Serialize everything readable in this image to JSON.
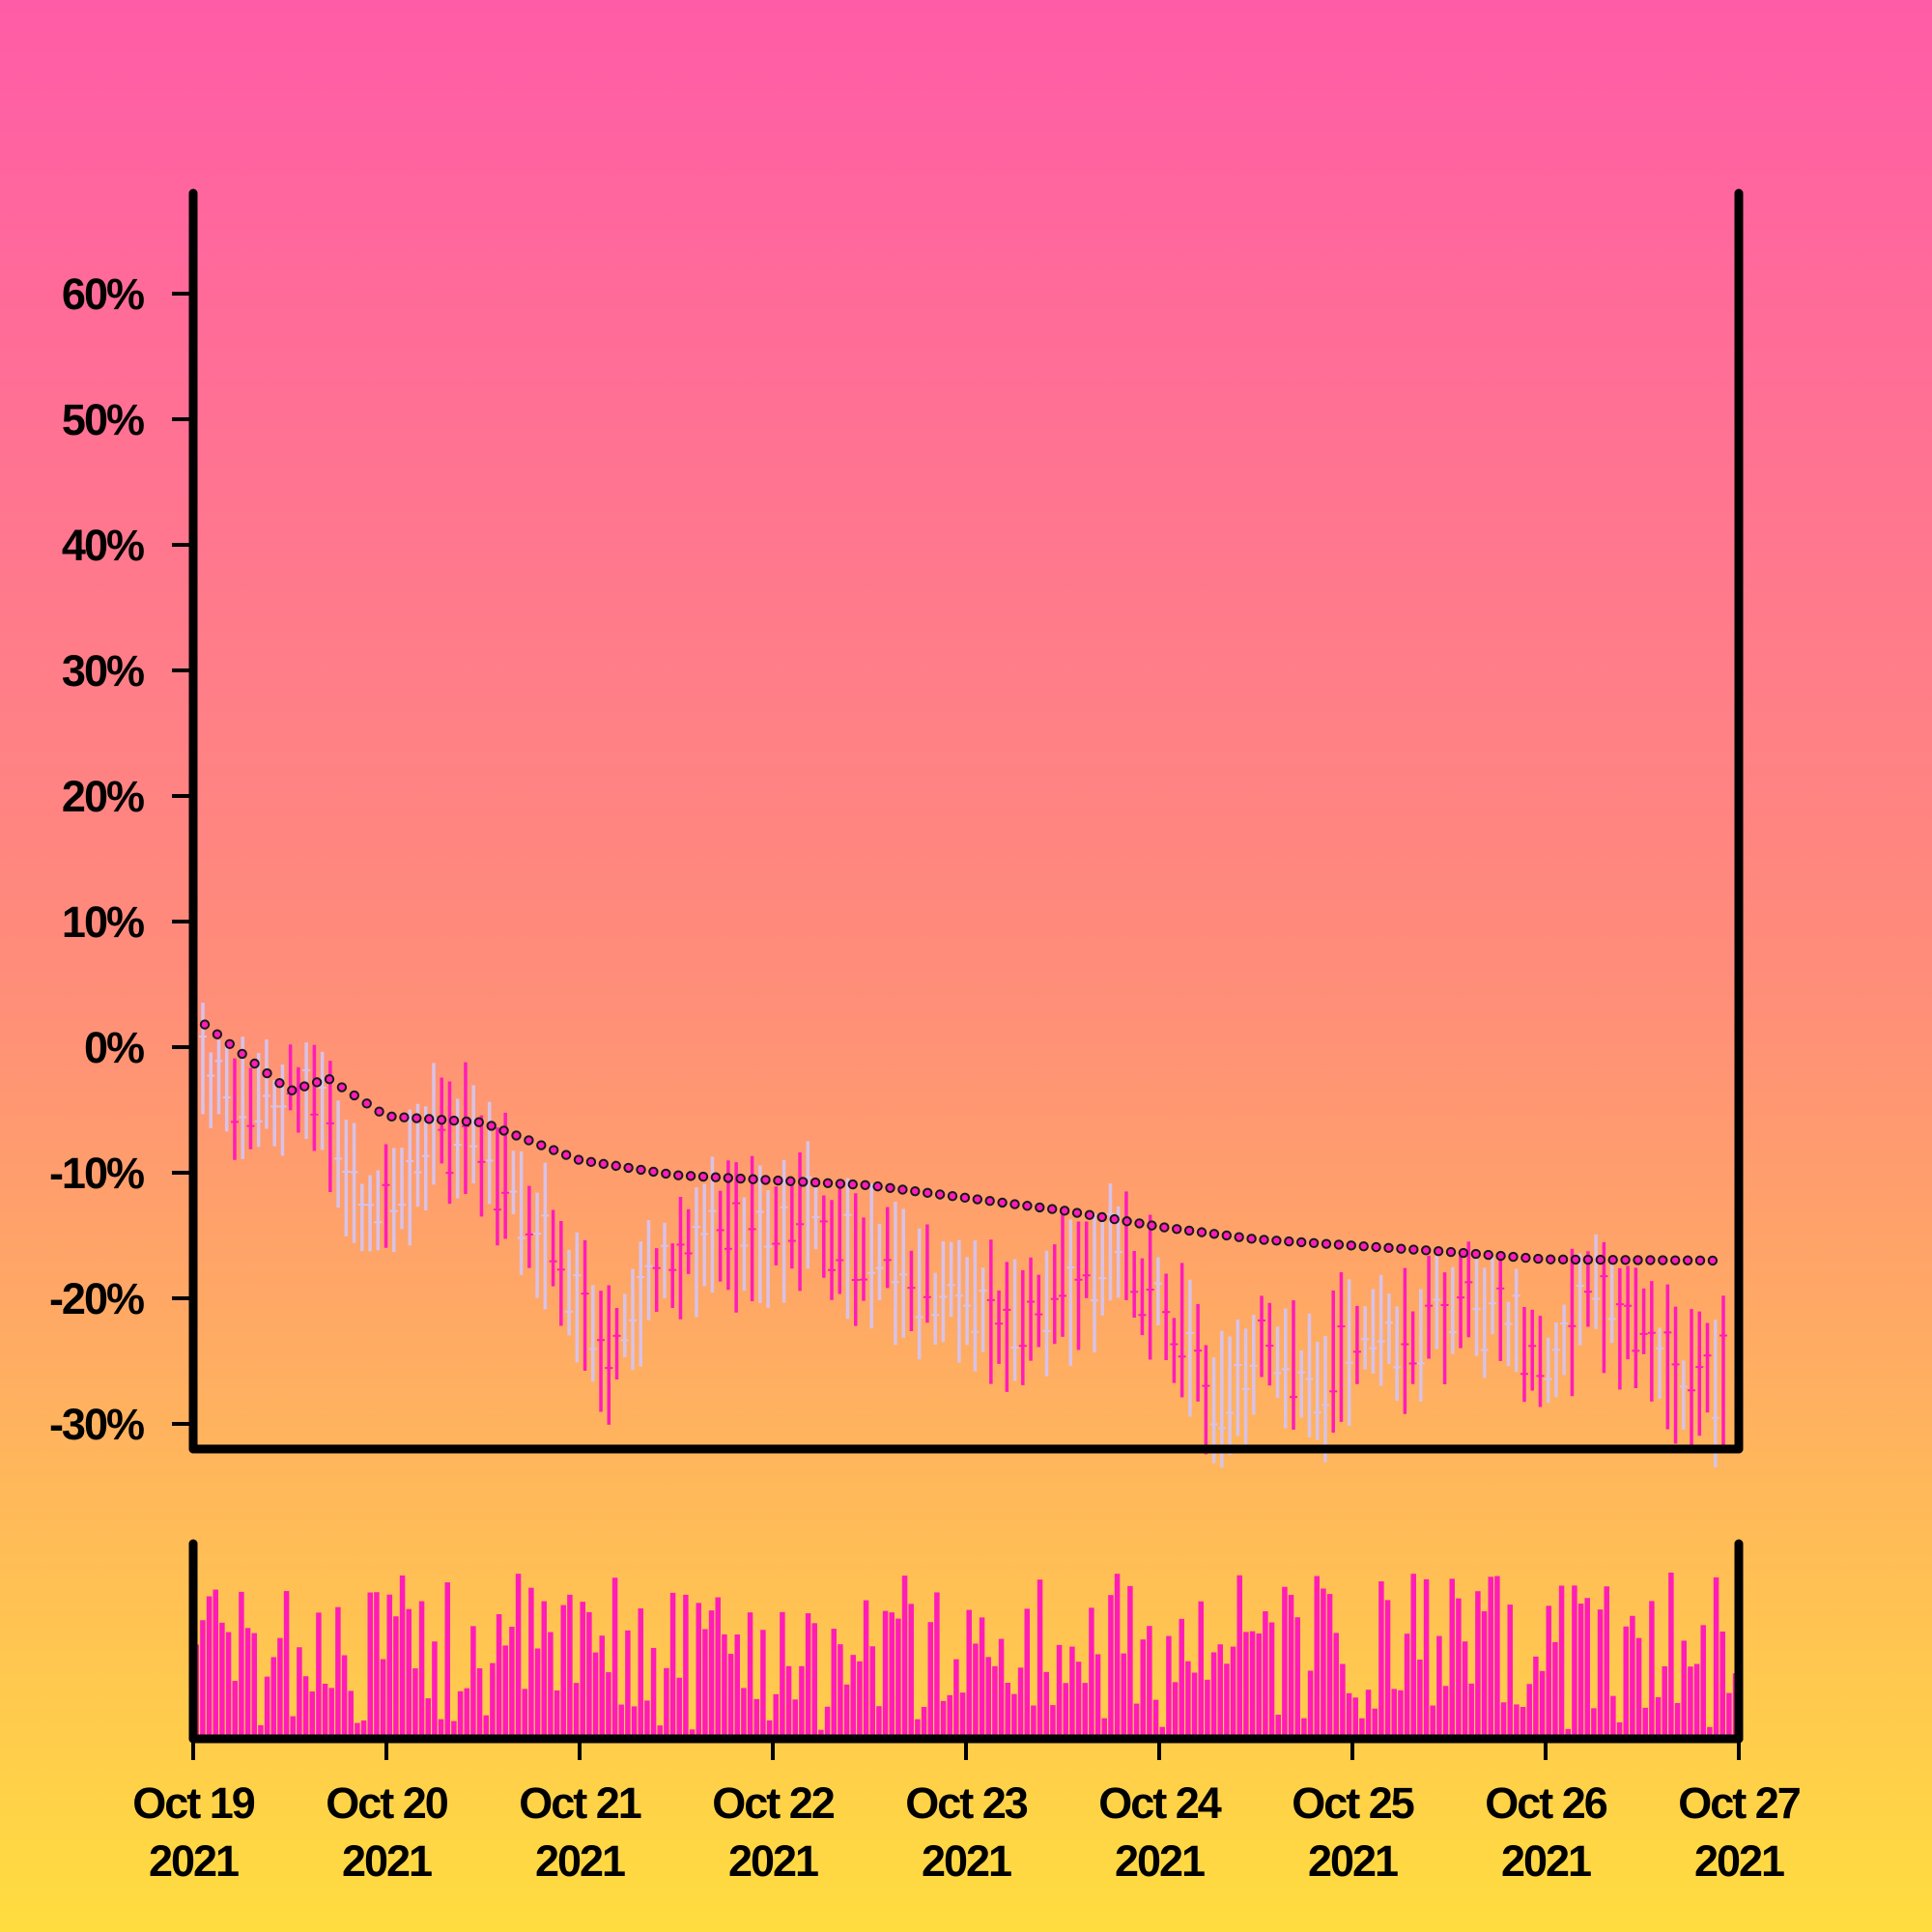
{
  "chart_data": [
    {
      "type": "ohlc",
      "ylim": [
        -32,
        68
      ],
      "ytick_values": [
        -30,
        -20,
        -10,
        0,
        10,
        20,
        30,
        40,
        50,
        60
      ],
      "ytick_labels": [
        "-30%",
        "-20%",
        "-10%",
        "0%",
        "10%",
        "20%",
        "30%",
        "40%",
        "50%",
        "60%"
      ],
      "colors": {
        "up": "#ff1cb8",
        "down": "#d8c2e8",
        "ma_dot": "#ff1cb8",
        "ma_outline": "#1a1a1a",
        "axis": "#000000"
      },
      "moving_average": [
        [
          0.06,
          1.8
        ],
        [
          0.5,
          -3.5
        ],
        [
          0.7,
          -2.5
        ],
        [
          1.0,
          -5.5
        ],
        [
          1.5,
          -6.0
        ],
        [
          2.0,
          -9.0
        ],
        [
          2.5,
          -10.2
        ],
        [
          3.0,
          -10.6
        ],
        [
          3.5,
          -11.0
        ],
        [
          4.0,
          -12.0
        ],
        [
          4.5,
          -13.0
        ],
        [
          5.0,
          -14.3
        ],
        [
          5.5,
          -15.3
        ],
        [
          6.0,
          -15.8
        ],
        [
          6.5,
          -16.3
        ],
        [
          7.0,
          -16.9
        ],
        [
          7.9,
          -17.0
        ]
      ],
      "price_anchors": [
        [
          0.0,
          -1.0
        ],
        [
          0.3,
          -4.5
        ],
        [
          0.6,
          -3.5
        ],
        [
          0.9,
          -13.0
        ],
        [
          1.1,
          -11.5
        ],
        [
          1.3,
          -6.0
        ],
        [
          1.6,
          -10.5
        ],
        [
          2.0,
          -20.0
        ],
        [
          2.15,
          -24.0
        ],
        [
          2.35,
          -19.0
        ],
        [
          2.5,
          -18.0
        ],
        [
          2.7,
          -14.0
        ],
        [
          3.0,
          -15.0
        ],
        [
          3.15,
          -12.5
        ],
        [
          3.3,
          -16.0
        ],
        [
          3.5,
          -16.0
        ],
        [
          3.8,
          -19.5
        ],
        [
          4.0,
          -19.0
        ],
        [
          4.2,
          -24.0
        ],
        [
          4.4,
          -20.0
        ],
        [
          4.8,
          -16.5
        ],
        [
          5.0,
          -21.0
        ],
        [
          5.3,
          -28.0
        ],
        [
          5.55,
          -24.0
        ],
        [
          5.8,
          -28.0
        ],
        [
          6.0,
          -24.0
        ],
        [
          6.3,
          -23.0
        ],
        [
          6.6,
          -19.5
        ],
        [
          6.8,
          -22.0
        ],
        [
          7.0,
          -26.0
        ],
        [
          7.1,
          -23.0
        ],
        [
          7.25,
          -20.0
        ],
        [
          7.5,
          -23.0
        ],
        [
          7.7,
          -27.0
        ],
        [
          7.9,
          -26.0
        ]
      ]
    },
    {
      "type": "bar",
      "note": "volume"
    }
  ],
  "x_axis": {
    "min": 0,
    "max": 8,
    "ticks": [
      {
        "pos": 0,
        "line1": "Oct 19",
        "line2": "2021"
      },
      {
        "pos": 1,
        "line1": "Oct 20",
        "line2": "2021"
      },
      {
        "pos": 2,
        "line1": "Oct 21",
        "line2": "2021"
      },
      {
        "pos": 3,
        "line1": "Oct 22",
        "line2": "2021"
      },
      {
        "pos": 4,
        "line1": "Oct 23",
        "line2": "2021"
      },
      {
        "pos": 5,
        "line1": "Oct 24",
        "line2": "2021"
      },
      {
        "pos": 6,
        "line1": "Oct 25",
        "line2": "2021"
      },
      {
        "pos": 7,
        "line1": "Oct 26",
        "line2": "2021"
      },
      {
        "pos": 8,
        "line1": "Oct 27",
        "line2": "2021"
      }
    ]
  }
}
